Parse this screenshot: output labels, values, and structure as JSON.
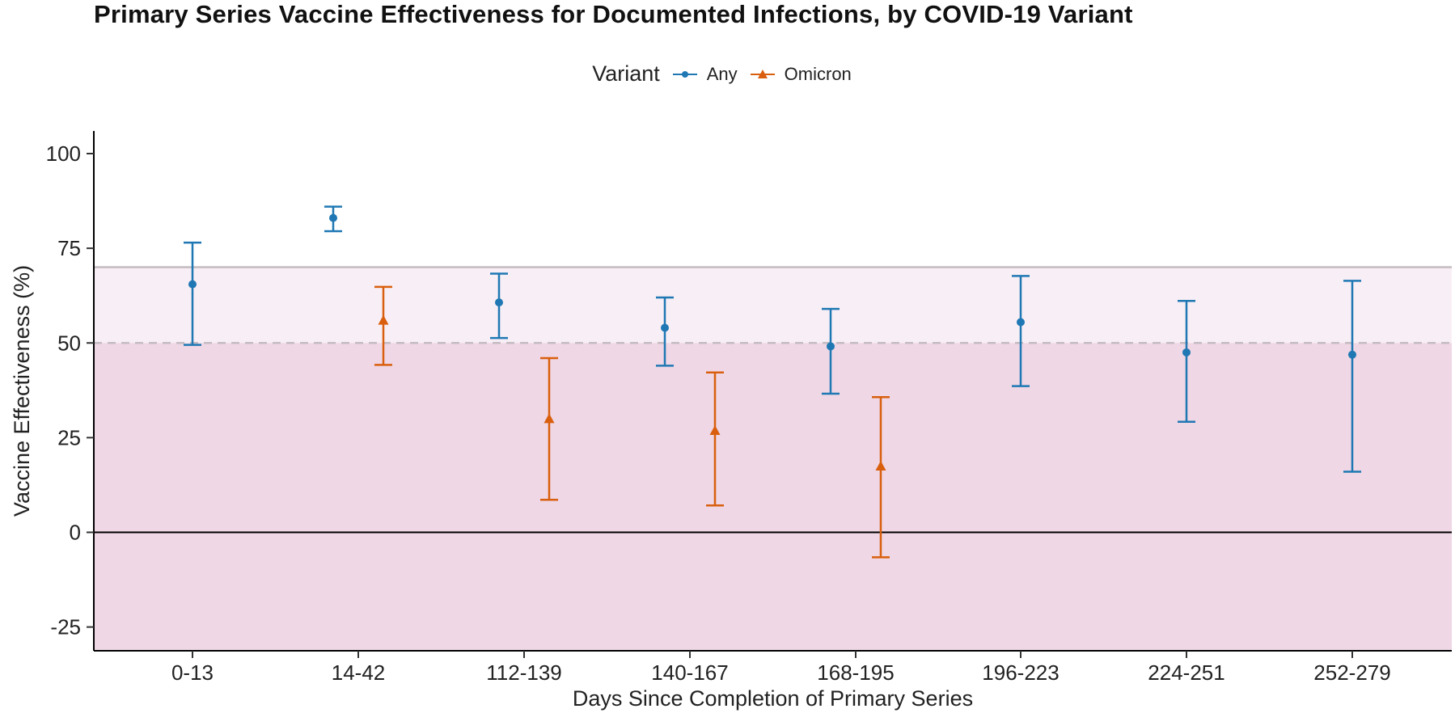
{
  "chart_data": {
    "type": "scatter",
    "title": "Primary Series Vaccine Effectiveness for Documented Infections, by COVID-19 Variant",
    "xlabel": "Days Since Completion of Primary Series",
    "ylabel": "Vaccine Effectiveness (%)",
    "categories": [
      "0-13",
      "14-42",
      "112-139",
      "140-167",
      "168-195",
      "196-223",
      "224-251",
      "252-279"
    ],
    "y_ticks": [
      "100",
      "75",
      "50",
      "25",
      "0",
      "-25"
    ],
    "y_tick_values": [
      100,
      75,
      50,
      25,
      0,
      -25
    ],
    "ylim": [
      -31,
      106
    ],
    "legend": {
      "title": "Variant",
      "position": "top"
    },
    "reference_lines": {
      "solid": 70,
      "dashed": 50,
      "zero": 0
    },
    "shaded_bands": [
      {
        "from": 50,
        "to": 70,
        "color": "#f8eef5"
      },
      {
        "from": -31,
        "to": 50,
        "color": "#efd7e5"
      }
    ],
    "grid": false,
    "series": [
      {
        "name": "Any",
        "color": "#1f78b4",
        "marker": "circle",
        "points": [
          {
            "category": "0-13",
            "value": 65.5,
            "lower": 49.5,
            "upper": 76.5
          },
          {
            "category": "14-42",
            "value": 83,
            "lower": 79.5,
            "upper": 86
          },
          {
            "category": "112-139",
            "value": 60.7,
            "lower": 51.3,
            "upper": 68.3
          },
          {
            "category": "140-167",
            "value": 54,
            "lower": 44,
            "upper": 62
          },
          {
            "category": "168-195",
            "value": 49.1,
            "lower": 36.6,
            "upper": 59
          },
          {
            "category": "196-223",
            "value": 55.5,
            "lower": 38.6,
            "upper": 67.7
          },
          {
            "category": "224-251",
            "value": 47.5,
            "lower": 29.2,
            "upper": 61.1
          },
          {
            "category": "252-279",
            "value": 46.9,
            "lower": 16,
            "upper": 66.4
          }
        ]
      },
      {
        "name": "Omicron",
        "color": "#d95f0e",
        "marker": "triangle",
        "points": [
          {
            "category": "14-42",
            "value": 55.9,
            "lower": 44.2,
            "upper": 64.8
          },
          {
            "category": "112-139",
            "value": 29.9,
            "lower": 8.6,
            "upper": 46
          },
          {
            "category": "140-167",
            "value": 26.8,
            "lower": 7.1,
            "upper": 42.2
          },
          {
            "category": "168-195",
            "value": 17.4,
            "lower": -6.6,
            "upper": 35.7
          }
        ]
      }
    ]
  }
}
